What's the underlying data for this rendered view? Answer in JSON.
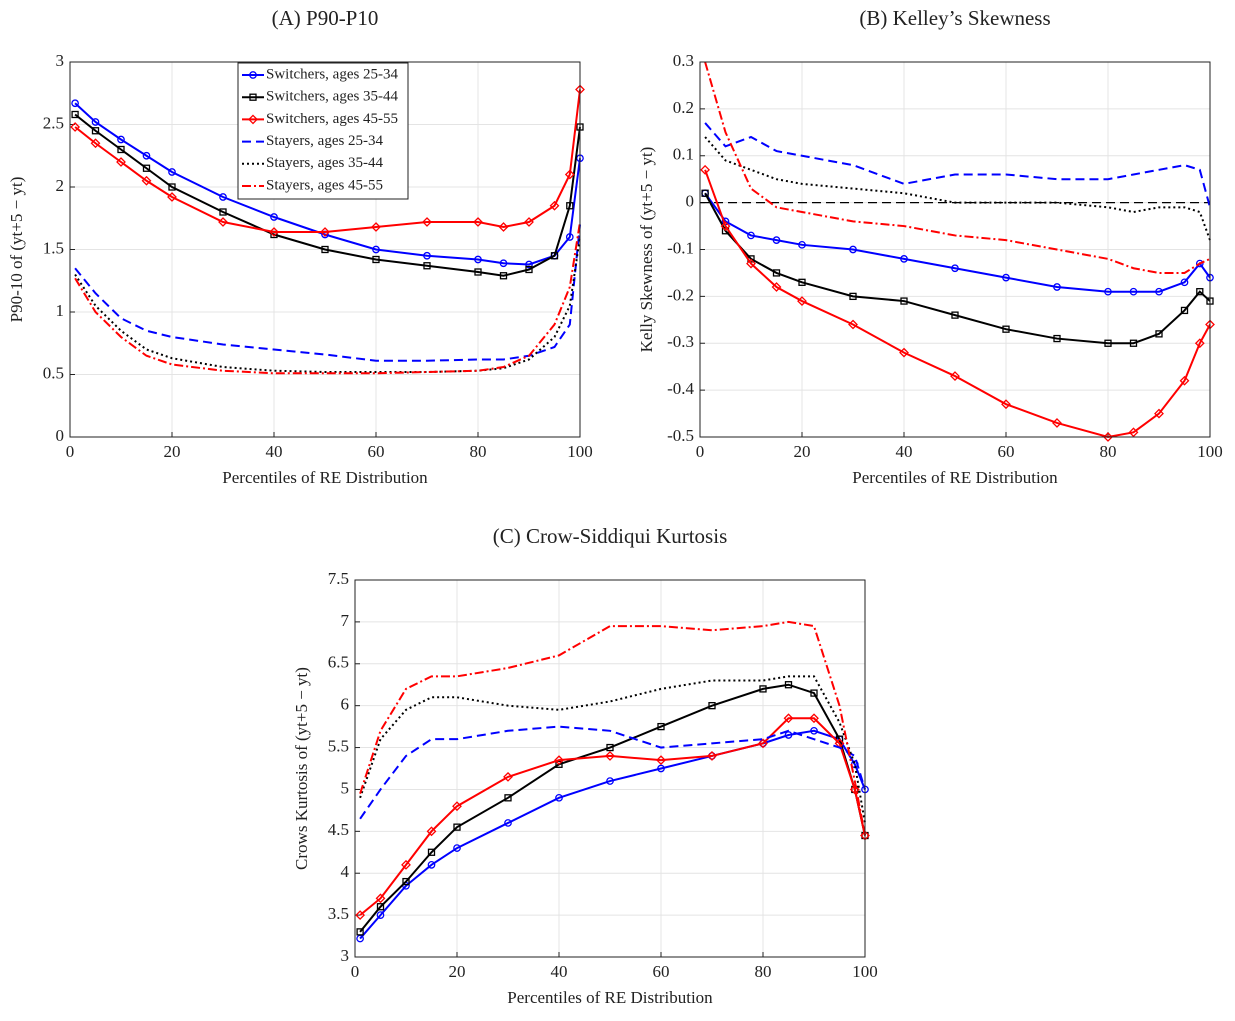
{
  "chart_data": [
    {
      "type": "line",
      "title": "(A) P90-P10",
      "xlabel": "Percentiles of RE Distribution",
      "ylabel": "P90-10 of (yt+5 − yt)",
      "x": [
        1,
        5,
        10,
        15,
        20,
        30,
        40,
        50,
        60,
        70,
        80,
        85,
        90,
        95,
        98,
        100
      ],
      "xlim": [
        0,
        100
      ],
      "xticks": [
        0,
        20,
        40,
        60,
        80,
        100
      ],
      "ylim": [
        0,
        3
      ],
      "yticks": [
        0,
        0.5,
        1,
        1.5,
        2,
        2.5,
        3
      ],
      "grid": true,
      "legend": "upper center",
      "series": [
        {
          "name": "Switchers, ages 25-34",
          "color": "#0000ff",
          "linestyle": "solid",
          "marker": "circle",
          "values": [
            2.67,
            2.52,
            2.38,
            2.25,
            2.12,
            1.92,
            1.76,
            1.62,
            1.5,
            1.45,
            1.42,
            1.39,
            1.38,
            1.45,
            1.6,
            2.23
          ]
        },
        {
          "name": "Switchers, ages 35-44",
          "color": "#000000",
          "linestyle": "solid",
          "marker": "square",
          "values": [
            2.58,
            2.45,
            2.3,
            2.15,
            2.0,
            1.8,
            1.62,
            1.5,
            1.42,
            1.37,
            1.32,
            1.29,
            1.34,
            1.45,
            1.85,
            2.48
          ]
        },
        {
          "name": "Switchers, ages 45-55",
          "color": "#ff0000",
          "linestyle": "solid",
          "marker": "diamond",
          "values": [
            2.48,
            2.35,
            2.2,
            2.05,
            1.92,
            1.72,
            1.64,
            1.64,
            1.68,
            1.72,
            1.72,
            1.68,
            1.72,
            1.85,
            2.1,
            2.78
          ]
        },
        {
          "name": "Stayers, ages 25-34",
          "color": "#0000ff",
          "linestyle": "dashed",
          "marker": "none",
          "values": [
            1.35,
            1.15,
            0.95,
            0.85,
            0.8,
            0.74,
            0.7,
            0.66,
            0.61,
            0.61,
            0.62,
            0.62,
            0.65,
            0.72,
            0.9,
            1.7
          ]
        },
        {
          "name": "Stayers, ages 35-44",
          "color": "#000000",
          "linestyle": "dotted",
          "marker": "none",
          "values": [
            1.3,
            1.05,
            0.85,
            0.7,
            0.63,
            0.56,
            0.53,
            0.52,
            0.52,
            0.52,
            0.53,
            0.55,
            0.62,
            0.8,
            1.05,
            1.6
          ]
        },
        {
          "name": "Stayers, ages 45-55",
          "color": "#ff0000",
          "linestyle": "dashdot",
          "marker": "none",
          "values": [
            1.27,
            1.0,
            0.8,
            0.65,
            0.58,
            0.53,
            0.51,
            0.51,
            0.51,
            0.52,
            0.53,
            0.56,
            0.65,
            0.9,
            1.2,
            1.72
          ]
        }
      ]
    },
    {
      "type": "line",
      "title": "(B) Kelley’s Skewness",
      "xlabel": "Percentiles of RE Distribution",
      "ylabel": "Kelly Skewness of (yt+5 − yt)",
      "x": [
        1,
        5,
        10,
        15,
        20,
        30,
        40,
        50,
        60,
        70,
        80,
        85,
        90,
        95,
        98,
        100
      ],
      "xlim": [
        0,
        100
      ],
      "xticks": [
        0,
        20,
        40,
        60,
        80,
        100
      ],
      "ylim": [
        -0.5,
        0.3
      ],
      "yticks": [
        -0.5,
        -0.4,
        -0.3,
        -0.2,
        -0.1,
        0,
        0.1,
        0.2,
        0.3
      ],
      "grid": true,
      "reference_line": 0,
      "series": [
        {
          "name": "Switchers, ages 25-34",
          "color": "#0000ff",
          "linestyle": "solid",
          "marker": "circle",
          "values": [
            0.02,
            -0.04,
            -0.07,
            -0.08,
            -0.09,
            -0.1,
            -0.12,
            -0.14,
            -0.16,
            -0.18,
            -0.19,
            -0.19,
            -0.19,
            -0.17,
            -0.13,
            -0.16
          ]
        },
        {
          "name": "Switchers, ages 35-44",
          "color": "#000000",
          "linestyle": "solid",
          "marker": "square",
          "values": [
            0.02,
            -0.06,
            -0.12,
            -0.15,
            -0.17,
            -0.2,
            -0.21,
            -0.24,
            -0.27,
            -0.29,
            -0.3,
            -0.3,
            -0.28,
            -0.23,
            -0.19,
            -0.21
          ]
        },
        {
          "name": "Switchers, ages 45-55",
          "color": "#ff0000",
          "linestyle": "solid",
          "marker": "diamond",
          "values": [
            0.07,
            -0.05,
            -0.13,
            -0.18,
            -0.21,
            -0.26,
            -0.32,
            -0.37,
            -0.43,
            -0.47,
            -0.5,
            -0.49,
            -0.45,
            -0.38,
            -0.3,
            -0.26
          ]
        },
        {
          "name": "Stayers, ages 25-34",
          "color": "#0000ff",
          "linestyle": "dashed",
          "marker": "none",
          "values": [
            0.17,
            0.12,
            0.14,
            0.11,
            0.1,
            0.08,
            0.04,
            0.06,
            0.06,
            0.05,
            0.05,
            0.06,
            0.07,
            0.08,
            0.07,
            -0.01
          ]
        },
        {
          "name": "Stayers, ages 35-44",
          "color": "#000000",
          "linestyle": "dotted",
          "marker": "none",
          "values": [
            0.14,
            0.09,
            0.07,
            0.05,
            0.04,
            0.03,
            0.02,
            0.0,
            0.0,
            0.0,
            -0.01,
            -0.02,
            -0.01,
            -0.01,
            -0.02,
            -0.08
          ]
        },
        {
          "name": "Stayers, ages 45-55",
          "color": "#ff0000",
          "linestyle": "dashdot",
          "marker": "none",
          "values": [
            0.3,
            0.15,
            0.03,
            -0.01,
            -0.02,
            -0.04,
            -0.05,
            -0.07,
            -0.08,
            -0.1,
            -0.12,
            -0.14,
            -0.15,
            -0.15,
            -0.13,
            -0.12
          ]
        }
      ]
    },
    {
      "type": "line",
      "title": "(C) Crow-Siddiqui Kurtosis",
      "xlabel": "Percentiles of RE Distribution",
      "ylabel": "Crows Kurtosis of (yt+5 − yt)",
      "x": [
        1,
        5,
        10,
        15,
        20,
        30,
        40,
        50,
        60,
        70,
        80,
        85,
        90,
        95,
        98,
        100
      ],
      "xlim": [
        0,
        100
      ],
      "xticks": [
        0,
        20,
        40,
        60,
        80,
        100
      ],
      "ylim": [
        3,
        7.5
      ],
      "yticks": [
        3,
        3.5,
        4,
        4.5,
        5,
        5.5,
        6,
        6.5,
        7,
        7.5
      ],
      "grid": true,
      "series": [
        {
          "name": "Switchers, ages 25-34",
          "color": "#0000ff",
          "linestyle": "solid",
          "marker": "circle",
          "values": [
            3.22,
            3.5,
            3.85,
            4.1,
            4.3,
            4.6,
            4.9,
            5.1,
            5.25,
            5.4,
            5.55,
            5.65,
            5.7,
            5.6,
            5.3,
            5.0
          ]
        },
        {
          "name": "Switchers, ages 35-44",
          "color": "#000000",
          "linestyle": "solid",
          "marker": "square",
          "values": [
            3.3,
            3.6,
            3.9,
            4.25,
            4.55,
            4.9,
            5.3,
            5.5,
            5.75,
            6.0,
            6.2,
            6.25,
            6.15,
            5.6,
            5.0,
            4.45
          ]
        },
        {
          "name": "Switchers, ages 45-55",
          "color": "#ff0000",
          "linestyle": "solid",
          "marker": "diamond",
          "values": [
            3.5,
            3.7,
            4.1,
            4.5,
            4.8,
            5.15,
            5.35,
            5.4,
            5.35,
            5.4,
            5.55,
            5.85,
            5.85,
            5.55,
            5.0,
            4.45
          ]
        },
        {
          "name": "Stayers, ages 25-34",
          "color": "#0000ff",
          "linestyle": "dashed",
          "marker": "none",
          "values": [
            4.65,
            5.0,
            5.4,
            5.6,
            5.6,
            5.7,
            5.75,
            5.7,
            5.5,
            5.55,
            5.6,
            5.7,
            5.6,
            5.5,
            5.4,
            5.0
          ]
        },
        {
          "name": "Stayers, ages 35-44",
          "color": "#000000",
          "linestyle": "dotted",
          "marker": "none",
          "values": [
            4.9,
            5.6,
            5.95,
            6.1,
            6.1,
            6.0,
            5.95,
            6.05,
            6.2,
            6.3,
            6.3,
            6.35,
            6.35,
            5.8,
            5.3,
            4.6
          ]
        },
        {
          "name": "Stayers, ages 45-55",
          "color": "#ff0000",
          "linestyle": "dashdot",
          "marker": "none",
          "values": [
            4.95,
            5.7,
            6.2,
            6.35,
            6.35,
            6.45,
            6.6,
            6.95,
            6.95,
            6.9,
            6.95,
            7.0,
            6.95,
            6.0,
            5.1,
            4.45
          ]
        }
      ]
    }
  ]
}
